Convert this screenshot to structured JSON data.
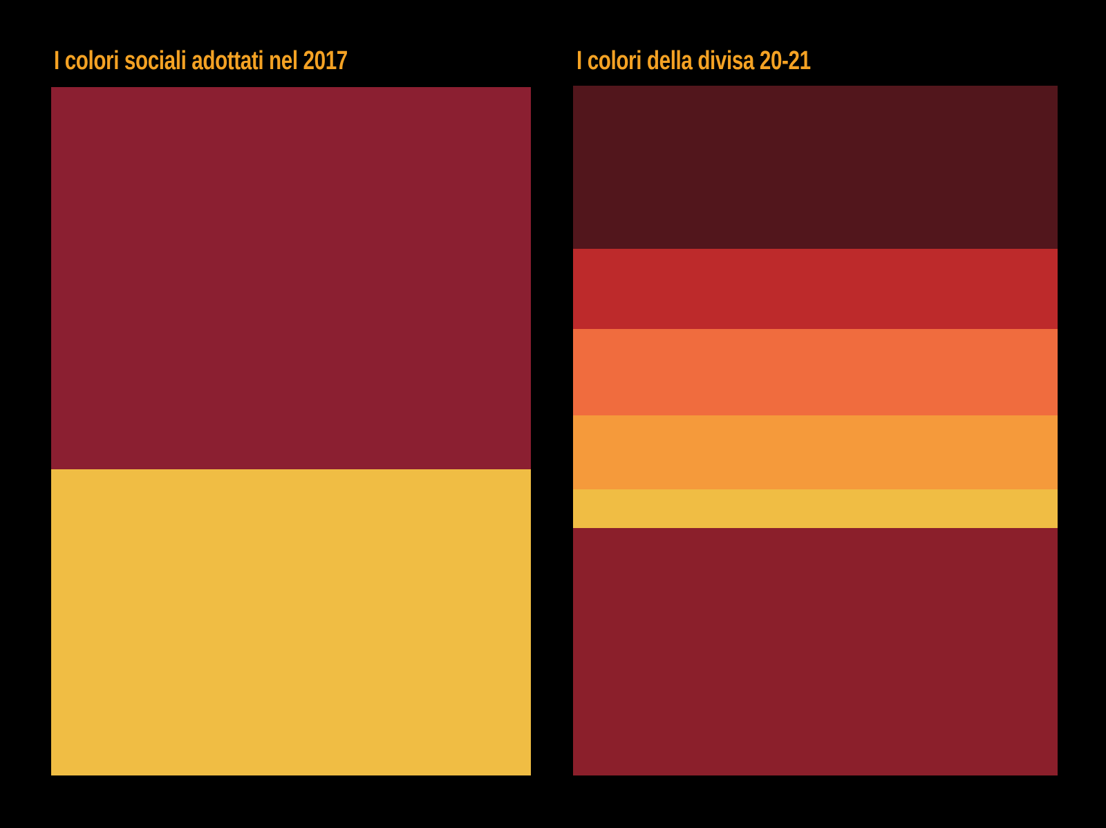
{
  "title_color": "#F4A224",
  "panels": {
    "left": {
      "title": "I colori sociali adottati nel 2017",
      "bands": [
        {
          "color": "#8B1F31",
          "share": 0.555
        },
        {
          "color": "#F0BD44",
          "share": 0.445
        }
      ]
    },
    "right": {
      "title": "I colori della divisa 20-21",
      "bands": [
        {
          "color": "#52161C",
          "share": 0.236
        },
        {
          "color": "#BD2A2B",
          "share": 0.117
        },
        {
          "color": "#F06C3E",
          "share": 0.125
        },
        {
          "color": "#F59A3B",
          "share": 0.107
        },
        {
          "color": "#F0BD44",
          "share": 0.056
        },
        {
          "color": "#8B1F2B",
          "share": 0.359
        }
      ]
    }
  }
}
